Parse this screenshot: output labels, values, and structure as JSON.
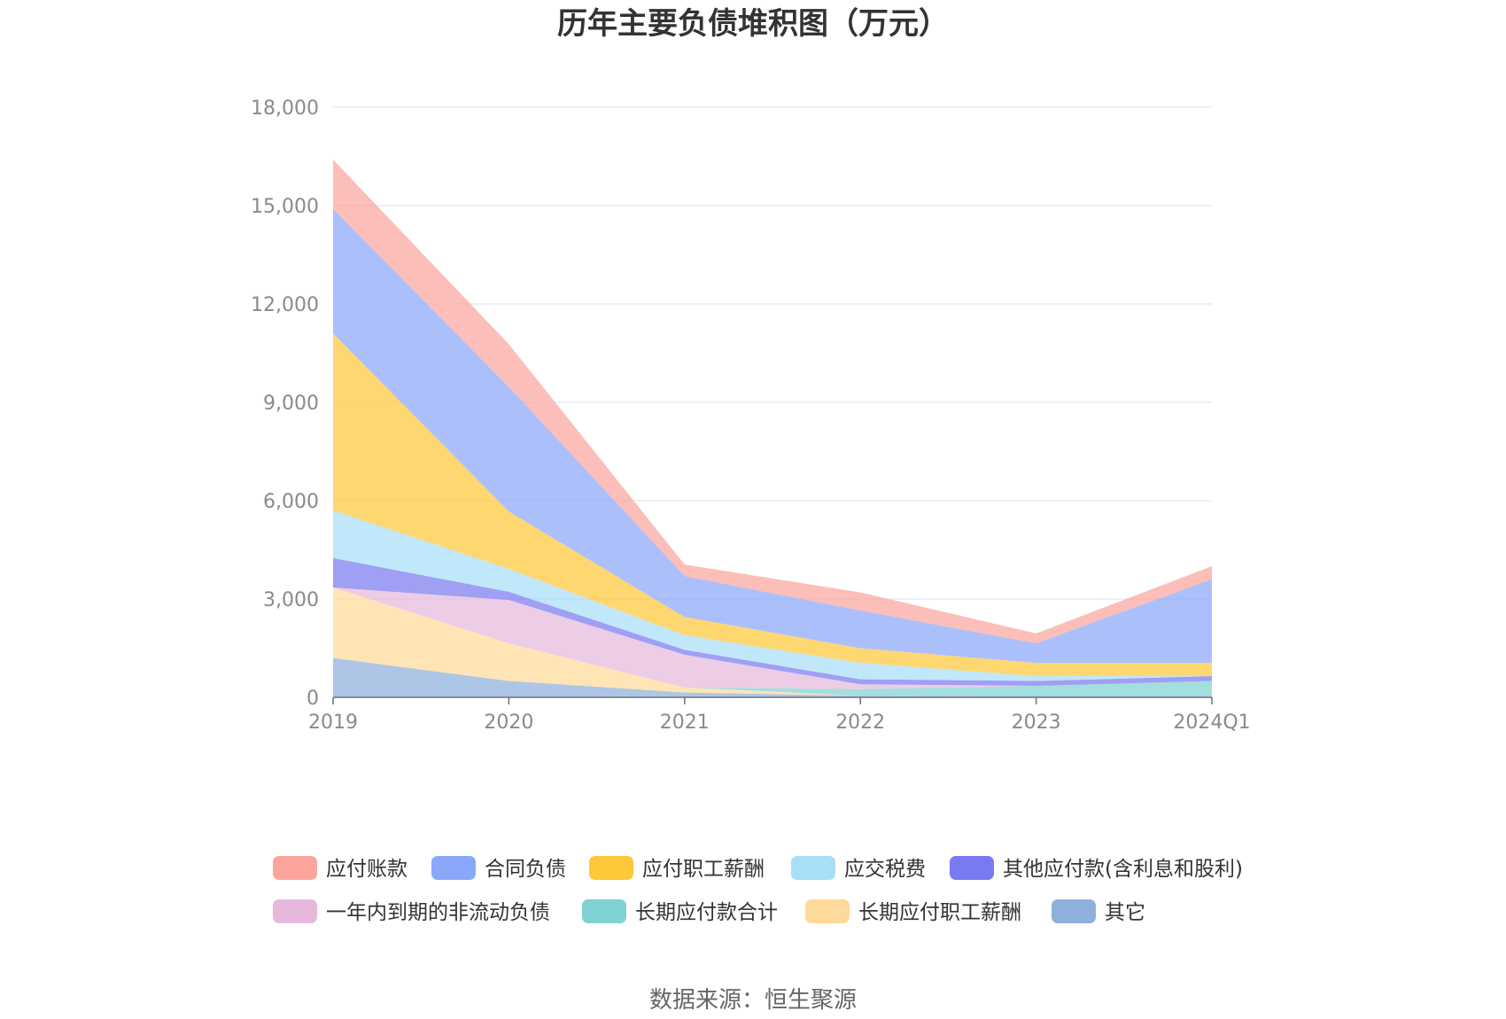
{
  "chart_data": {
    "type": "area",
    "stacked": true,
    "title": "历年主要负债堆积图（万元）",
    "x": [
      "2019",
      "2020",
      "2021",
      "2022",
      "2023",
      "2024Q1"
    ],
    "ylim": [
      0,
      18000
    ],
    "yticks": [
      "0",
      "3,000",
      "6,000",
      "9,000",
      "12,000",
      "15,000",
      "18,000"
    ],
    "grid": true,
    "legend_position": "bottom",
    "series": [
      {
        "name": "其它",
        "color": "#8fb0dc",
        "values": [
          1200,
          500,
          150,
          50,
          50,
          50
        ]
      },
      {
        "name": "长期应付职工薪酬",
        "color": "#ffd99a",
        "values": [
          2150,
          1150,
          150,
          0,
          0,
          0
        ]
      },
      {
        "name": "长期应付款合计",
        "color": "#7ed3d1",
        "values": [
          0,
          0,
          0,
          200,
          300,
          450
        ]
      },
      {
        "name": "一年内到期的非流动负债",
        "color": "#e6b8dc",
        "values": [
          0,
          1320,
          1000,
          150,
          0,
          0
        ]
      },
      {
        "name": "其他应付款(含利息和股利)",
        "color": "#7a7af0",
        "values": [
          900,
          250,
          150,
          150,
          150,
          150
        ]
      },
      {
        "name": "应交税费",
        "color": "#a8def8",
        "values": [
          1450,
          700,
          450,
          500,
          150,
          0
        ]
      },
      {
        "name": "应付职工薪酬",
        "color": "#ffc73a",
        "values": [
          5400,
          1750,
          550,
          450,
          400,
          400
        ]
      },
      {
        "name": "合同负债",
        "color": "#8aa8fa",
        "values": [
          3800,
          3800,
          1250,
          1150,
          600,
          2550
        ]
      },
      {
        "name": "应付账款",
        "color": "#fba59c",
        "values": [
          1500,
          1300,
          350,
          550,
          300,
          400
        ]
      }
    ]
  },
  "legend": [
    {
      "label": "应付账款",
      "color": "#fba59c"
    },
    {
      "label": "合同负债",
      "color": "#8aa8fa"
    },
    {
      "label": "应付职工薪酬",
      "color": "#ffc73a"
    },
    {
      "label": "应交税费",
      "color": "#a8def8"
    },
    {
      "label": "其他应付款(含利息和股利)",
      "color": "#7a7af0"
    },
    {
      "label": "一年内到期的非流动负债",
      "color": "#e6b8dc"
    },
    {
      "label": "长期应付款合计",
      "color": "#7ed3d1"
    },
    {
      "label": "长期应付职工薪酬",
      "color": "#ffd99a"
    },
    {
      "label": "其它",
      "color": "#8fb0dc"
    }
  ],
  "source": "数据来源：恒生聚源"
}
